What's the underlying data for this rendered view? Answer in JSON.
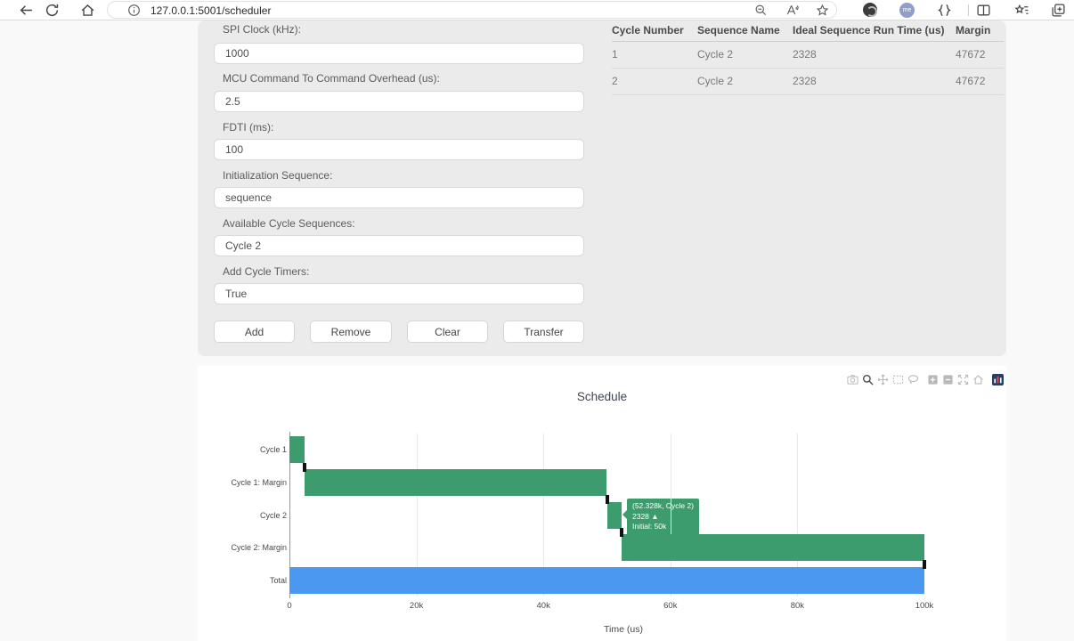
{
  "browser": {
    "url": "127.0.0.1:5001/scheduler",
    "profile_initials": "me",
    "nav_icons": [
      "back-icon",
      "refresh-icon",
      "home-icon",
      "page-info-icon"
    ],
    "pill_icons": [
      "zoom-out-icon",
      "read-aloud-icon",
      "favorite-star-icon"
    ],
    "right_icons": [
      "extension-icon",
      "profile-avatar",
      "braces-icon",
      "split-screen-icon",
      "favorites-bar-icon",
      "tab-groups-icon"
    ]
  },
  "form": {
    "fields": [
      {
        "label": "SPI Clock (kHz):",
        "value": "1000"
      },
      {
        "label": "MCU Command To Command Overhead (us):",
        "value": "2.5"
      },
      {
        "label": "FDTI (ms):",
        "value": "100"
      },
      {
        "label": "Initialization Sequence:",
        "value": "sequence"
      },
      {
        "label": "Available Cycle Sequences:",
        "value": "Cycle 2"
      },
      {
        "label": "Add Cycle Timers:",
        "value": "True"
      }
    ],
    "buttons": [
      {
        "label": "Add"
      },
      {
        "label": "Remove"
      },
      {
        "label": "Clear"
      },
      {
        "label": "Transfer"
      }
    ]
  },
  "table": {
    "headers": [
      "Cycle Number",
      "Sequence Name",
      "Ideal Sequence Run Time (us)",
      "Margin"
    ],
    "rows": [
      [
        "1",
        "Cycle 2",
        "2328",
        "47672"
      ],
      [
        "2",
        "Cycle 2",
        "2328",
        "47672"
      ]
    ]
  },
  "modebar": {
    "icons": [
      "camera",
      "zoom",
      "pan",
      "box-select",
      "lasso",
      "zoom-in",
      "zoom-out",
      "autoscale",
      "reset-axes",
      "plotly-logo"
    ],
    "active": "zoom"
  },
  "chart_data": {
    "type": "bar",
    "orientation": "horizontal",
    "title": "Schedule",
    "xlabel": "Time (us)",
    "xlim": [
      0,
      100000
    ],
    "x_ticks": [
      {
        "value": 0,
        "label": "0"
      },
      {
        "value": 20000,
        "label": "20k"
      },
      {
        "value": 40000,
        "label": "40k"
      },
      {
        "value": 60000,
        "label": "60k"
      },
      {
        "value": 80000,
        "label": "80k"
      },
      {
        "value": 100000,
        "label": "100k"
      }
    ],
    "categories": [
      "Cycle 1",
      "Cycle 1: Margin",
      "Cycle 2",
      "Cycle 2: Margin",
      "Total"
    ],
    "bars": [
      {
        "label": "Cycle 1",
        "start": 0,
        "end": 2328,
        "color": "#3d9c6e"
      },
      {
        "label": "Cycle 1: Margin",
        "start": 2328,
        "end": 50000,
        "color": "#3d9c6e"
      },
      {
        "label": "Cycle 2",
        "start": 50000,
        "end": 52328,
        "color": "#3d9c6e"
      },
      {
        "label": "Cycle 2: Margin",
        "start": 52328,
        "end": 100000,
        "color": "#3d9c6e"
      },
      {
        "label": "Total",
        "start": 0,
        "end": 100000,
        "color": "#4a98f0"
      }
    ],
    "timer_markers_us": [
      2328,
      50000,
      52328,
      100000
    ],
    "marker_color": "#121212",
    "tooltip": {
      "lines": [
        "(52.328k, Cycle 2)",
        "2328 ▲",
        "Initial: 50k"
      ],
      "color": "#3d9c6e"
    },
    "grid": true,
    "legend": "none"
  }
}
